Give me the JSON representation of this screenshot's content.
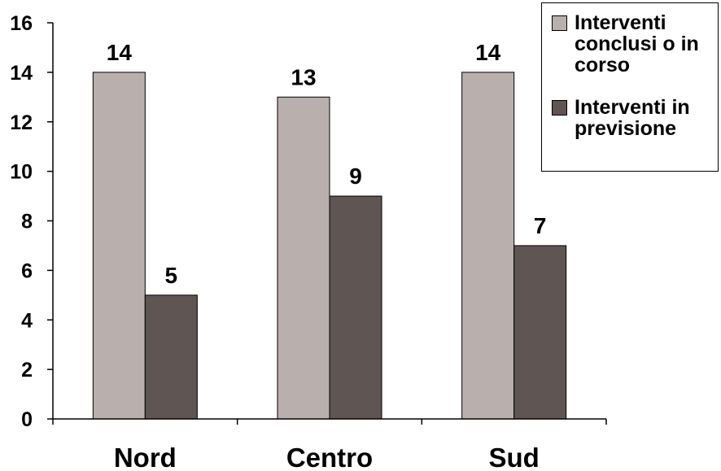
{
  "chart_data": {
    "type": "bar",
    "categories": [
      "Nord",
      "Centro",
      "Sud"
    ],
    "series": [
      {
        "name": "Interventi conclusi o in corso",
        "values": [
          14,
          13,
          14
        ]
      },
      {
        "name": "Interventi in previsione",
        "values": [
          5,
          9,
          7
        ]
      }
    ],
    "data_labels": [
      [
        "14",
        "13",
        "14"
      ],
      [
        "5",
        "9",
        "7"
      ]
    ],
    "ylim": [
      0,
      16
    ],
    "yticks": [
      0,
      2,
      4,
      6,
      8,
      10,
      12,
      14,
      16
    ],
    "xlabel": "",
    "ylabel": "",
    "grid": false,
    "legend_position": "top-right",
    "colors": [
      "#b9b0ad",
      "#5f5553"
    ]
  },
  "legend": {
    "items": [
      {
        "label": "Interventi conclusi o in corso",
        "color": "#b9b0ad"
      },
      {
        "label": "Interventi in previsione",
        "color": "#5f5553"
      }
    ]
  }
}
